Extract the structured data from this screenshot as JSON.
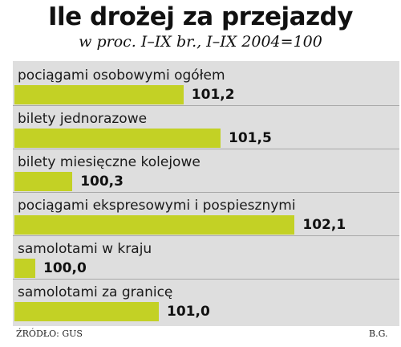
{
  "chart_data": {
    "type": "bar",
    "title": "Ile drożej za przejazdy",
    "subtitle": "w proc. I–IX br., I–IX 2004=100",
    "categories": [
      "pociągami osobowymi ogółem",
      "bilety jednorazowe",
      "bilety miesięczne kolejowe",
      "pociągami ekspresowymi i pospiesznymi",
      "samolotami w kraju",
      "samolotami za granicę"
    ],
    "values": [
      101.2,
      101.5,
      100.3,
      102.1,
      100.0,
      101.0
    ],
    "value_labels": [
      "101,2",
      "101,5",
      "100,3",
      "102,1",
      "100,0",
      "101,0"
    ],
    "baseline": 100,
    "orientation": "horizontal",
    "grid": false,
    "legend": "none",
    "source": "ŹRÓDŁO: GUS",
    "author": "B.G."
  },
  "colors": {
    "bar": "#c3d125",
    "panel": "#dedede",
    "text": "#111111"
  }
}
